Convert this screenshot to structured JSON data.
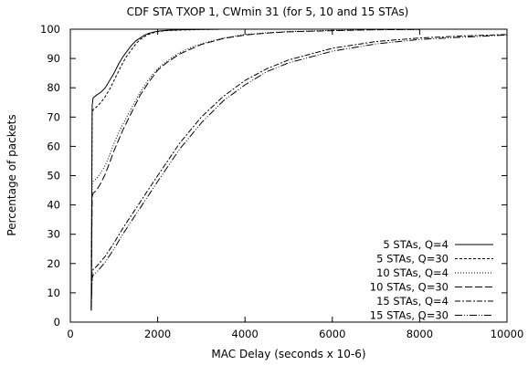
{
  "chart_data": {
    "type": "line",
    "title": "CDF STA TXOP 1, CWmin 31 (for 5, 10 and 15 STAs)",
    "xlabel": "MAC Delay (seconds x 10-6)",
    "ylabel": "Percentage of packets",
    "xlim": [
      0,
      10000
    ],
    "ylim": [
      0,
      100
    ],
    "xticks": [
      0,
      2000,
      4000,
      6000,
      8000,
      10000
    ],
    "yticks": [
      0,
      10,
      20,
      30,
      40,
      50,
      60,
      70,
      80,
      90,
      100
    ],
    "grid": false,
    "legend_position": "bottom-right",
    "series": [
      {
        "name": "5 STAs, Q=4",
        "dash": "",
        "x": [
          480,
          500,
          520,
          600,
          700,
          800,
          900,
          1000,
          1100,
          1200,
          1300,
          1400,
          1500,
          1600,
          1700,
          1800,
          1900,
          2000,
          2200,
          2500,
          3000,
          3500,
          4000,
          5000,
          6000
        ],
        "y": [
          4,
          74,
          76.5,
          77.5,
          78.5,
          80,
          82.5,
          85,
          88,
          90.5,
          92.5,
          94.5,
          96,
          97,
          98,
          98.6,
          99,
          99.3,
          99.6,
          99.8,
          99.9,
          100,
          100,
          100,
          100
        ]
      },
      {
        "name": "5 STAs, Q=30",
        "dash": "3,2",
        "x": [
          480,
          500,
          520,
          600,
          700,
          800,
          900,
          1000,
          1100,
          1200,
          1300,
          1400,
          1500,
          1600,
          1700,
          1800,
          1900,
          2000,
          2200,
          2500,
          3000,
          3500,
          4000,
          5000,
          6000
        ],
        "y": [
          5,
          71,
          72.5,
          73.5,
          75,
          77,
          79.5,
          82.5,
          85.5,
          88.5,
          91,
          93,
          95,
          96.5,
          97.5,
          98.3,
          98.8,
          99.2,
          99.5,
          99.7,
          99.9,
          100,
          100,
          100,
          100
        ]
      },
      {
        "name": "10 STAs, Q=4",
        "dash": "1,2",
        "x": [
          480,
          500,
          520,
          600,
          700,
          800,
          900,
          1000,
          1100,
          1200,
          1400,
          1600,
          1800,
          2000,
          2200,
          2500,
          2800,
          3000,
          3500,
          4000,
          4500,
          5000,
          6000,
          7000,
          8000
        ],
        "y": [
          5,
          47,
          48,
          49,
          51,
          53.5,
          57,
          61,
          64.5,
          67.5,
          73,
          78.5,
          83,
          86.5,
          89,
          92,
          94,
          95,
          97,
          98.2,
          98.8,
          99.2,
          99.6,
          99.8,
          99.9
        ]
      },
      {
        "name": "10 STAs, Q=30",
        "dash": "8,3",
        "x": [
          480,
          500,
          520,
          600,
          700,
          800,
          900,
          1000,
          1100,
          1200,
          1400,
          1600,
          1800,
          2000,
          2200,
          2500,
          2800,
          3000,
          3500,
          4000,
          4500,
          5000,
          6000,
          7000,
          8000
        ],
        "y": [
          5,
          43,
          44,
          45,
          47.5,
          50.5,
          54.5,
          58.5,
          62,
          65.5,
          71.5,
          77.5,
          82,
          86,
          88.5,
          91.5,
          93.5,
          94.8,
          96.8,
          98,
          98.7,
          99.1,
          99.5,
          99.8,
          99.9
        ]
      },
      {
        "name": "15 STAs, Q=4",
        "dash": "6,2,2,2",
        "x": [
          480,
          500,
          520,
          600,
          800,
          1000,
          1200,
          1400,
          1600,
          1800,
          2000,
          2500,
          3000,
          3500,
          4000,
          4500,
          5000,
          6000,
          7000,
          8000,
          9000,
          10000
        ],
        "y": [
          4,
          17,
          18,
          19,
          22.5,
          27,
          32,
          36.5,
          41,
          45.5,
          50,
          61,
          70,
          77,
          82.5,
          86.5,
          89.5,
          93.5,
          95.8,
          97,
          97.7,
          98.2
        ]
      },
      {
        "name": "15 STAs, Q=30",
        "dash": "8,2,1,2,1,2",
        "x": [
          480,
          500,
          520,
          600,
          800,
          1000,
          1200,
          1400,
          1600,
          1800,
          2000,
          2500,
          3000,
          3500,
          4000,
          4500,
          5000,
          6000,
          7000,
          8000,
          9000,
          10000
        ],
        "y": [
          4,
          15,
          16,
          17,
          20.5,
          25,
          30,
          34.5,
          39,
          43.5,
          48,
          59,
          68,
          75.5,
          81,
          85.5,
          88.5,
          92.5,
          95,
          96.5,
          97.3,
          98
        ]
      }
    ]
  }
}
